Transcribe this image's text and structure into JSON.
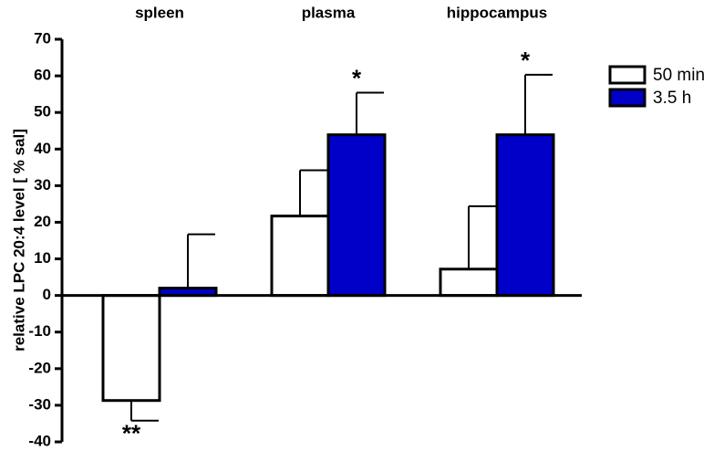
{
  "chart_data": {
    "type": "bar",
    "y_label": "relative LPC 20:4 level [ % sal]",
    "categories": [
      "spleen",
      "plasma",
      "hippocampus"
    ],
    "series": [
      {
        "name": "50 min",
        "color": "#ffffff",
        "values": [
          -28.7,
          21.7,
          7.2
        ],
        "errors": [
          5.5,
          12.5,
          17.2
        ],
        "annotations": [
          "**",
          null,
          null
        ]
      },
      {
        "name": "3.5 h",
        "color": "#0000c8",
        "values": [
          2.0,
          43.9,
          43.9
        ],
        "errors": [
          14.7,
          11.5,
          16.4
        ],
        "annotations": [
          null,
          "*",
          "*"
        ]
      }
    ],
    "ylim": [
      -40,
      70
    ],
    "yticks": [
      70,
      60,
      50,
      40,
      30,
      20,
      10,
      0,
      -10,
      -20,
      -30,
      -40
    ],
    "grid": false,
    "legend": "upper right"
  }
}
